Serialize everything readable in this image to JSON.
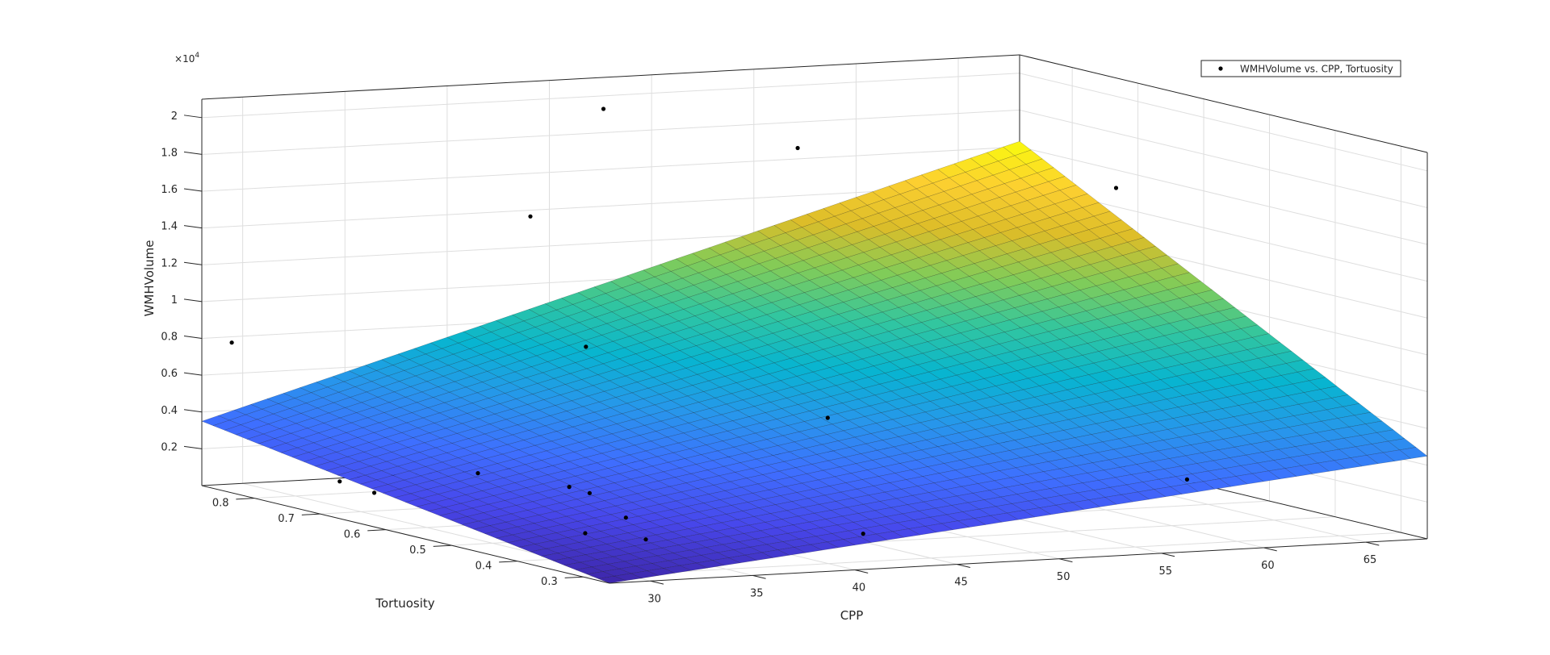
{
  "chart_data": {
    "type": "surface3d",
    "title": "",
    "xlabel": "CPP",
    "ylabel": "Tortuosity",
    "zlabel": "WMHVolume",
    "z_exponent_label": "10",
    "z_exponent_power": "4",
    "xlim": [
      28,
      68
    ],
    "ylim": [
      0.26,
      0.88
    ],
    "zlim": [
      0,
      21000
    ],
    "x_ticks": [
      30,
      35,
      40,
      45,
      50,
      55,
      60,
      65
    ],
    "y_ticks": [
      0.3,
      0.4,
      0.5,
      0.6,
      0.7,
      0.8
    ],
    "z_ticks": [
      2000,
      4000,
      6000,
      8000,
      10000,
      12000,
      14000,
      16000,
      18000,
      20000
    ],
    "x_tick_labels": [
      "30",
      "35",
      "40",
      "45",
      "50",
      "55",
      "60",
      "65"
    ],
    "y_tick_labels": [
      "0.3",
      "0.4",
      "0.5",
      "0.6",
      "0.7",
      "0.8"
    ],
    "z_tick_labels": [
      "0.2",
      "0.4",
      "0.6",
      "0.8",
      "1",
      "1.2",
      "1.4",
      "1.6",
      "1.8",
      "2"
    ],
    "grid": true,
    "colormap": "parula",
    "surface": {
      "corners": [
        {
          "x": 28,
          "y": 0.26,
          "z": 0
        },
        {
          "x": 68,
          "y": 0.26,
          "z": 4500
        },
        {
          "x": 28,
          "y": 0.88,
          "z": 3500
        },
        {
          "x": 68,
          "y": 0.88,
          "z": 16300
        }
      ]
    },
    "series": [
      {
        "name": "WMHVolume vs. CPP, Tortuosity",
        "marker": "dot",
        "points": [
          {
            "x": 28.5,
            "y": 0.85,
            "z": 8000
          },
          {
            "x": 47.0,
            "y": 0.86,
            "z": 19500
          },
          {
            "x": 56.5,
            "y": 0.86,
            "z": 16800
          },
          {
            "x": 41.5,
            "y": 0.8,
            "z": 14500
          },
          {
            "x": 65.0,
            "y": 0.64,
            "z": 16000
          },
          {
            "x": 41.0,
            "y": 0.7,
            "z": 8300
          },
          {
            "x": 48.0,
            "y": 0.55,
            "z": 5300
          },
          {
            "x": 58.5,
            "y": 0.33,
            "z": 3200
          },
          {
            "x": 43.3,
            "y": 0.35,
            "z": 1000
          },
          {
            "x": 32.5,
            "y": 0.6,
            "z": 2800
          },
          {
            "x": 36.0,
            "y": 0.57,
            "z": 2100
          },
          {
            "x": 37.0,
            "y": 0.57,
            "z": 1700
          },
          {
            "x": 36.2,
            "y": 0.49,
            "z": 1100
          },
          {
            "x": 30.0,
            "y": 0.68,
            "z": 1200
          },
          {
            "x": 29.6,
            "y": 0.72,
            "z": 1500
          },
          {
            "x": 32.6,
            "y": 0.44,
            "z": 900
          },
          {
            "x": 34.6,
            "y": 0.41,
            "z": 700
          }
        ]
      }
    ],
    "legend": {
      "position": "top-right"
    }
  }
}
